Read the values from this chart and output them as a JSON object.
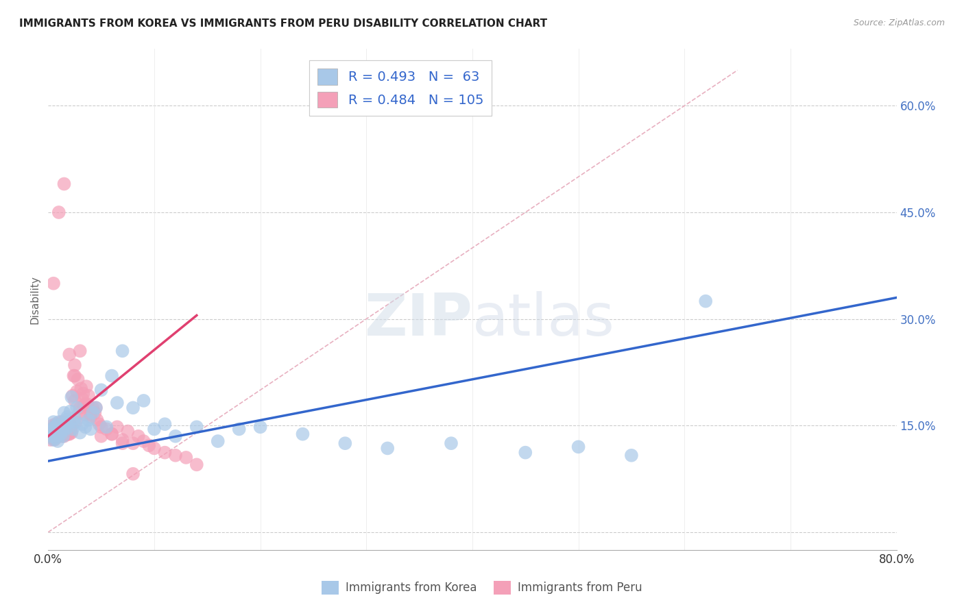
{
  "title": "IMMIGRANTS FROM KOREA VS IMMIGRANTS FROM PERU DISABILITY CORRELATION CHART",
  "source": "Source: ZipAtlas.com",
  "ylabel": "Disability",
  "xlim": [
    0.0,
    0.8
  ],
  "ylim": [
    -0.025,
    0.68
  ],
  "xticks": [
    0.0,
    0.1,
    0.2,
    0.3,
    0.4,
    0.5,
    0.6,
    0.7,
    0.8
  ],
  "xticklabels": [
    "0.0%",
    "",
    "",
    "",
    "",
    "",
    "",
    "",
    "80.0%"
  ],
  "yticks": [
    0.0,
    0.15,
    0.3,
    0.45,
    0.6
  ],
  "right_yticklabels": [
    "",
    "15.0%",
    "30.0%",
    "45.0%",
    "60.0%"
  ],
  "korea_color": "#a8c8e8",
  "peru_color": "#f4a0b8",
  "korea_line_color": "#3366cc",
  "peru_line_color": "#e04070",
  "diag_line_color": "#e8b0c0",
  "korea_R": 0.493,
  "korea_N": 63,
  "peru_R": 0.484,
  "peru_N": 105,
  "watermark_zip": "ZIP",
  "watermark_atlas": "atlas",
  "legend_korea": "Immigrants from Korea",
  "legend_peru": "Immigrants from Peru",
  "korea_line_x": [
    0.0,
    0.8
  ],
  "korea_line_y": [
    0.1,
    0.33
  ],
  "peru_line_x": [
    0.0,
    0.14
  ],
  "peru_line_y": [
    0.135,
    0.305
  ],
  "diag_line_x": [
    0.0,
    0.65
  ],
  "diag_line_y": [
    0.0,
    0.65
  ],
  "grid_yticks": [
    0.0,
    0.15,
    0.3,
    0.45,
    0.6
  ],
  "korea_scatter_x": [
    0.002,
    0.003,
    0.004,
    0.005,
    0.005,
    0.006,
    0.006,
    0.007,
    0.007,
    0.008,
    0.008,
    0.009,
    0.009,
    0.01,
    0.01,
    0.011,
    0.012,
    0.012,
    0.013,
    0.013,
    0.014,
    0.015,
    0.015,
    0.016,
    0.017,
    0.018,
    0.019,
    0.02,
    0.021,
    0.022,
    0.023,
    0.024,
    0.025,
    0.027,
    0.03,
    0.032,
    0.035,
    0.038,
    0.04,
    0.042,
    0.045,
    0.05,
    0.055,
    0.06,
    0.065,
    0.07,
    0.08,
    0.09,
    0.1,
    0.11,
    0.12,
    0.14,
    0.16,
    0.18,
    0.2,
    0.24,
    0.28,
    0.32,
    0.38,
    0.45,
    0.5,
    0.55,
    0.62
  ],
  "korea_scatter_y": [
    0.14,
    0.135,
    0.145,
    0.13,
    0.155,
    0.138,
    0.148,
    0.132,
    0.142,
    0.136,
    0.15,
    0.128,
    0.145,
    0.14,
    0.155,
    0.148,
    0.142,
    0.138,
    0.152,
    0.145,
    0.135,
    0.15,
    0.168,
    0.145,
    0.158,
    0.162,
    0.148,
    0.155,
    0.17,
    0.19,
    0.145,
    0.155,
    0.16,
    0.175,
    0.14,
    0.152,
    0.148,
    0.158,
    0.145,
    0.168,
    0.175,
    0.2,
    0.148,
    0.22,
    0.182,
    0.255,
    0.175,
    0.185,
    0.145,
    0.152,
    0.135,
    0.148,
    0.128,
    0.145,
    0.148,
    0.138,
    0.125,
    0.118,
    0.125,
    0.112,
    0.12,
    0.108,
    0.325
  ],
  "peru_scatter_x": [
    0.001,
    0.002,
    0.002,
    0.003,
    0.003,
    0.004,
    0.004,
    0.005,
    0.005,
    0.005,
    0.006,
    0.006,
    0.006,
    0.007,
    0.007,
    0.007,
    0.008,
    0.008,
    0.008,
    0.009,
    0.009,
    0.009,
    0.01,
    0.01,
    0.01,
    0.01,
    0.011,
    0.011,
    0.012,
    0.012,
    0.012,
    0.013,
    0.013,
    0.013,
    0.014,
    0.014,
    0.015,
    0.015,
    0.015,
    0.016,
    0.016,
    0.017,
    0.017,
    0.018,
    0.018,
    0.018,
    0.019,
    0.019,
    0.02,
    0.02,
    0.02,
    0.021,
    0.021,
    0.022,
    0.022,
    0.023,
    0.024,
    0.025,
    0.025,
    0.026,
    0.027,
    0.028,
    0.029,
    0.03,
    0.031,
    0.032,
    0.033,
    0.034,
    0.035,
    0.036,
    0.037,
    0.038,
    0.04,
    0.042,
    0.044,
    0.046,
    0.048,
    0.05,
    0.055,
    0.06,
    0.065,
    0.07,
    0.075,
    0.08,
    0.085,
    0.09,
    0.095,
    0.1,
    0.11,
    0.12,
    0.13,
    0.14,
    0.005,
    0.01,
    0.015,
    0.02,
    0.025,
    0.03,
    0.035,
    0.04,
    0.045,
    0.05,
    0.06,
    0.07,
    0.08
  ],
  "peru_scatter_y": [
    0.138,
    0.142,
    0.13,
    0.145,
    0.135,
    0.14,
    0.15,
    0.132,
    0.145,
    0.138,
    0.148,
    0.14,
    0.13,
    0.145,
    0.152,
    0.135,
    0.142,
    0.15,
    0.138,
    0.145,
    0.14,
    0.135,
    0.148,
    0.142,
    0.152,
    0.138,
    0.145,
    0.14,
    0.155,
    0.148,
    0.138,
    0.15,
    0.142,
    0.135,
    0.148,
    0.14,
    0.155,
    0.148,
    0.135,
    0.152,
    0.145,
    0.148,
    0.138,
    0.155,
    0.142,
    0.15,
    0.148,
    0.138,
    0.155,
    0.148,
    0.138,
    0.15,
    0.142,
    0.148,
    0.14,
    0.192,
    0.22,
    0.235,
    0.185,
    0.155,
    0.198,
    0.215,
    0.168,
    0.175,
    0.202,
    0.188,
    0.195,
    0.178,
    0.165,
    0.205,
    0.18,
    0.192,
    0.162,
    0.175,
    0.168,
    0.158,
    0.152,
    0.135,
    0.145,
    0.138,
    0.148,
    0.13,
    0.142,
    0.125,
    0.135,
    0.128,
    0.122,
    0.118,
    0.112,
    0.108,
    0.105,
    0.095,
    0.35,
    0.45,
    0.49,
    0.25,
    0.22,
    0.255,
    0.18,
    0.165,
    0.175,
    0.148,
    0.138,
    0.125,
    0.082
  ]
}
